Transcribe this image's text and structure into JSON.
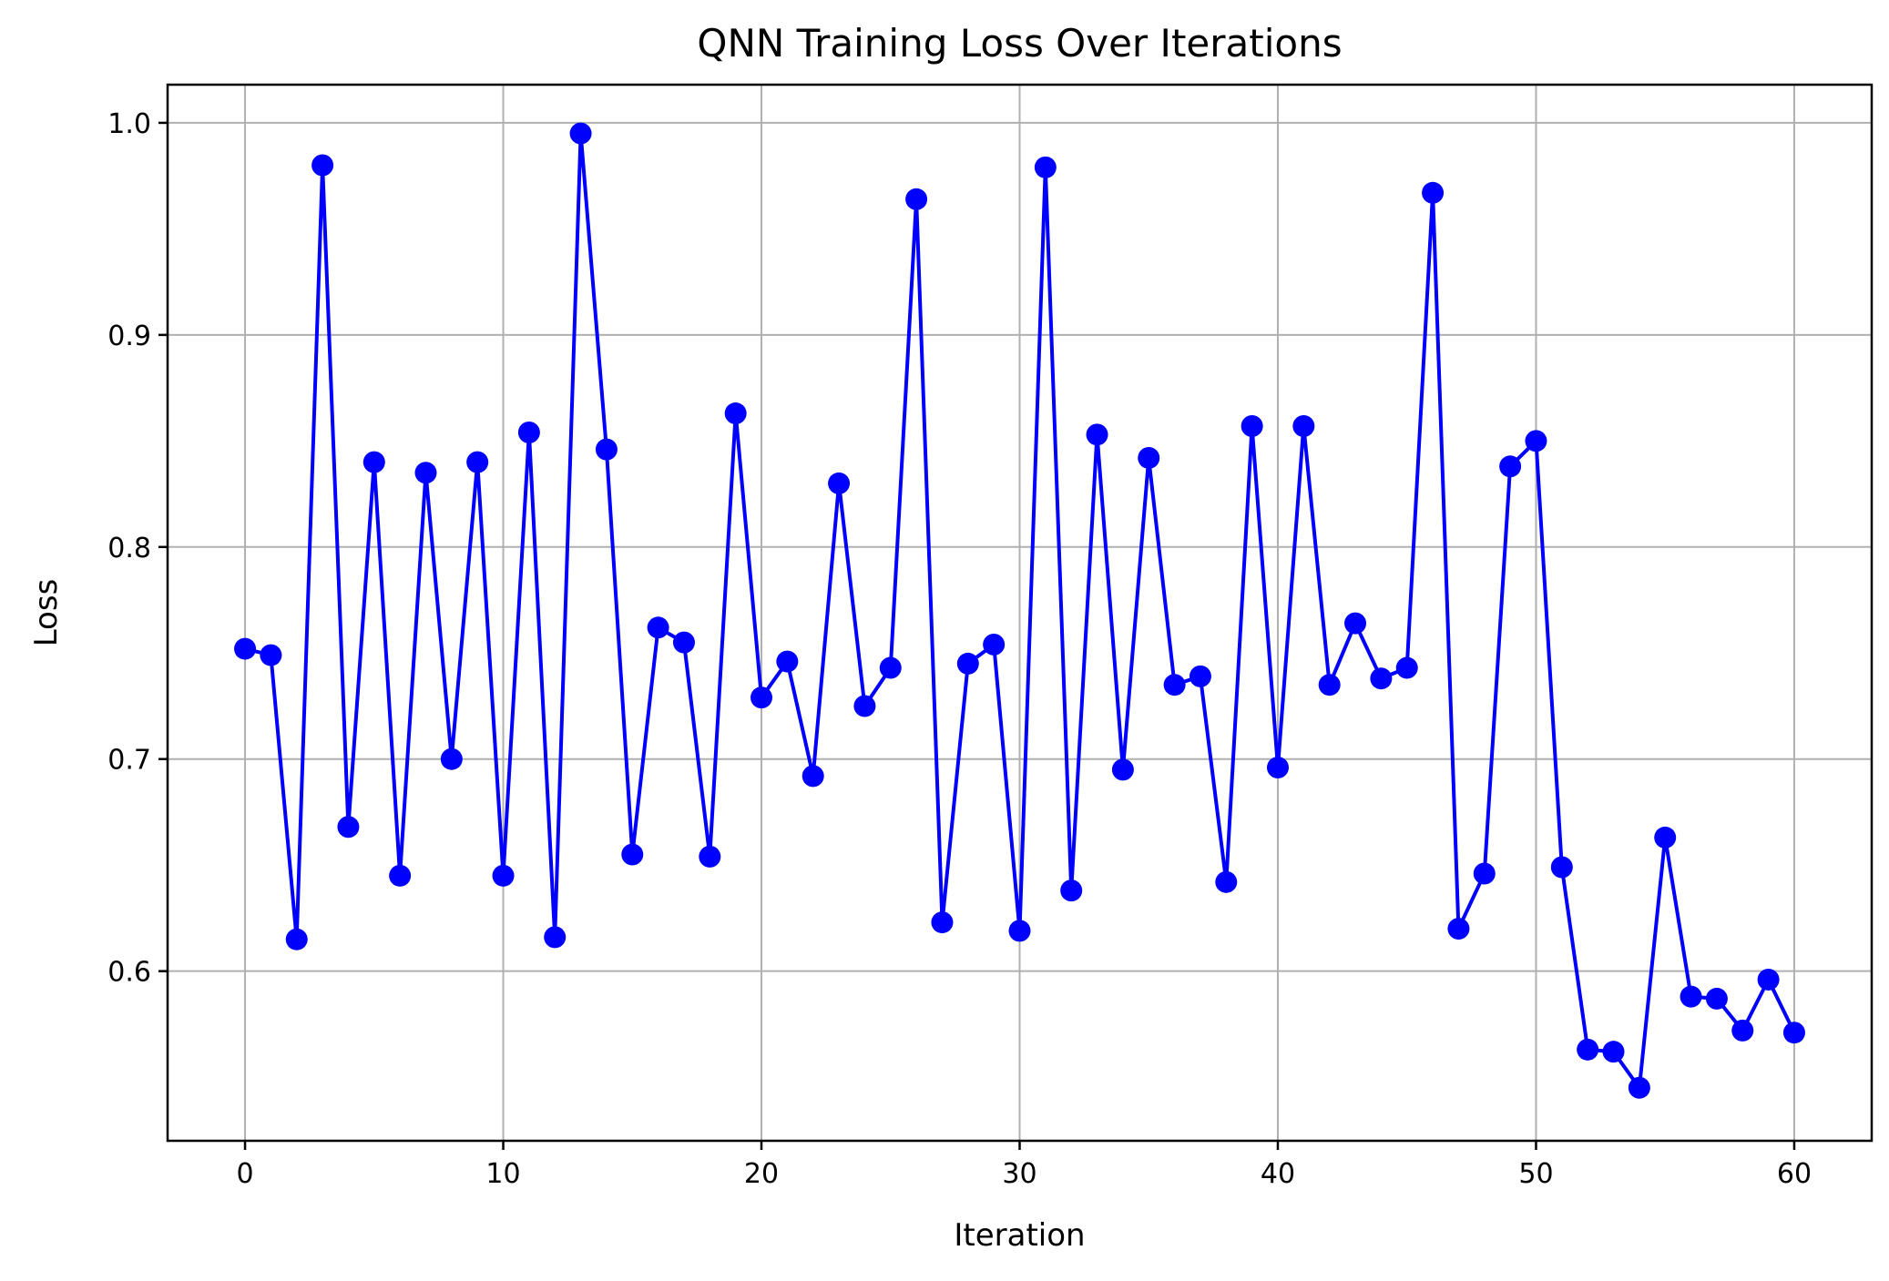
{
  "chart_data": {
    "type": "line",
    "title": "QNN Training Loss Over Iterations",
    "xlabel": "Iteration",
    "ylabel": "Loss",
    "xlim": [
      -3,
      63
    ],
    "ylim": [
      0.52,
      1.018
    ],
    "xticks": [
      0,
      10,
      20,
      30,
      40,
      50,
      60
    ],
    "xtick_labels": [
      "0",
      "10",
      "20",
      "30",
      "40",
      "50",
      "60"
    ],
    "yticks": [
      0.6,
      0.7,
      0.8,
      0.9,
      1.0
    ],
    "ytick_labels": [
      "0.6",
      "0.7",
      "0.8",
      "0.9",
      "1.0"
    ],
    "grid": true,
    "legend": "none",
    "series": [
      {
        "color": "#0000ff",
        "marker": "circle",
        "x": [
          0,
          1,
          2,
          3,
          4,
          5,
          6,
          7,
          8,
          9,
          10,
          11,
          12,
          13,
          14,
          15,
          16,
          17,
          18,
          19,
          20,
          21,
          22,
          23,
          24,
          25,
          26,
          27,
          28,
          29,
          30,
          31,
          32,
          33,
          34,
          35,
          36,
          37,
          38,
          39,
          40,
          41,
          42,
          43,
          44,
          45,
          46,
          47,
          48,
          49,
          50,
          51,
          52,
          53,
          54,
          55,
          56,
          57,
          58,
          59,
          60
        ],
        "y": [
          0.752,
          0.749,
          0.615,
          0.98,
          0.668,
          0.84,
          0.645,
          0.835,
          0.7,
          0.84,
          0.645,
          0.854,
          0.616,
          0.995,
          0.846,
          0.655,
          0.762,
          0.755,
          0.654,
          0.863,
          0.729,
          0.746,
          0.692,
          0.83,
          0.725,
          0.743,
          0.964,
          0.623,
          0.745,
          0.754,
          0.619,
          0.979,
          0.638,
          0.853,
          0.695,
          0.842,
          0.735,
          0.739,
          0.642,
          0.857,
          0.696,
          0.857,
          0.735,
          0.764,
          0.738,
          0.743,
          0.967,
          0.62,
          0.646,
          0.838,
          0.85,
          0.649,
          0.563,
          0.562,
          0.545,
          0.663,
          0.588,
          0.587,
          0.572,
          0.596,
          0.571
        ]
      }
    ]
  }
}
